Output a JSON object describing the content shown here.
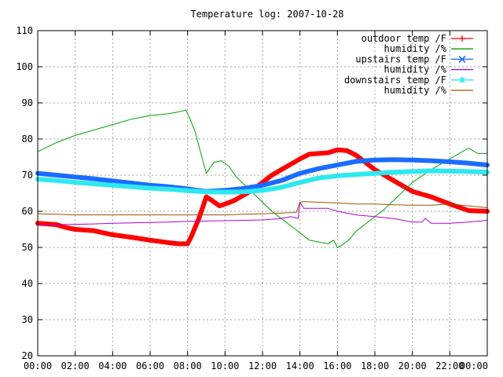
{
  "chart_data": {
    "type": "line",
    "title": "Temperature log: 2007-10-28",
    "xlabel": "",
    "ylabel": "",
    "xlim": [
      0,
      24
    ],
    "ylim": [
      20,
      110
    ],
    "grid": true,
    "legend_position": "top-right",
    "x_ticks": [
      "00:00",
      "02:00",
      "04:00",
      "06:00",
      "08:00",
      "10:00",
      "12:00",
      "14:00",
      "16:00",
      "18:00",
      "20:00",
      "22:00",
      "00:00"
    ],
    "y_ticks": [
      "20",
      "30",
      "40",
      "50",
      "60",
      "70",
      "80",
      "90",
      "100",
      "110"
    ],
    "series": [
      {
        "name": "outdoor temp /F",
        "color": "#ff0000",
        "marker": "plus",
        "width": 6,
        "x": [
          0,
          1,
          1.5,
          2,
          3,
          4,
          5,
          6,
          7,
          7.5,
          8,
          8.2,
          8.6,
          9,
          9.3,
          9.7,
          10,
          10.5,
          11,
          11.5,
          12,
          12.5,
          13,
          13.5,
          14,
          14.5,
          15,
          15.5,
          16,
          16.5,
          17,
          17.5,
          18,
          18.5,
          19,
          19.5,
          20,
          21,
          22,
          23,
          24
        ],
        "y": [
          56.7,
          56.3,
          55.5,
          55,
          54.6,
          53.5,
          52.8,
          52,
          51.3,
          51,
          51,
          53,
          58,
          64,
          63,
          61.5,
          62,
          63,
          64.5,
          66,
          68,
          70,
          71.5,
          73,
          74.5,
          75.8,
          76,
          76.2,
          77,
          76.8,
          75.5,
          73.5,
          71.5,
          70,
          68.5,
          67,
          65.5,
          64,
          62,
          60.2,
          60
        ]
      },
      {
        "name": "humidity /%",
        "color": "#00a000",
        "marker": "none",
        "width": 1,
        "x": [
          0,
          1,
          2,
          3,
          4,
          5,
          6,
          7,
          7.5,
          7.9,
          8.1,
          8.4,
          9,
          9.4,
          9.8,
          10.2,
          10.6,
          11,
          11.5,
          12,
          12.5,
          13,
          13.5,
          14,
          14.5,
          15,
          15.5,
          15.8,
          16,
          16.2,
          16.6,
          17,
          17.5,
          18,
          18.5,
          19,
          19.5,
          20,
          21,
          22,
          23,
          23.5,
          24
        ],
        "y": [
          76.5,
          79,
          81,
          82.5,
          84,
          85.5,
          86.5,
          87,
          87.5,
          88,
          86,
          82,
          70.5,
          73.5,
          74,
          72.5,
          69.5,
          67.5,
          65,
          62.5,
          60,
          58,
          56,
          54,
          52,
          51.5,
          51,
          52,
          50,
          50.5,
          52,
          54.5,
          56.5,
          58.5,
          60.5,
          63,
          65.5,
          68,
          71.5,
          74.5,
          77.5,
          76,
          76
        ]
      },
      {
        "name": "upstairs temp /F",
        "color": "#1a6cff",
        "marker": "cross",
        "width": 6,
        "x": [
          0,
          1,
          2,
          3,
          4,
          5,
          6,
          7,
          8,
          8.5,
          9,
          10,
          11,
          12,
          13,
          14,
          15,
          16,
          17,
          18,
          19,
          20,
          21,
          22,
          23,
          24
        ],
        "y": [
          70.5,
          70,
          69.5,
          69,
          68.4,
          67.8,
          67.2,
          66.8,
          66.2,
          65.8,
          65.5,
          65.8,
          66.3,
          67.2,
          68.5,
          70.5,
          71.8,
          72.8,
          73.8,
          74.2,
          74.3,
          74.2,
          74,
          73.7,
          73.3,
          72.8
        ]
      },
      {
        "name": "humidity /%",
        "color": "#b000d0",
        "marker": "none",
        "width": 1,
        "x": [
          0,
          1,
          2,
          3,
          4,
          5,
          6,
          7,
          8,
          9,
          10,
          11,
          12,
          13,
          13.5,
          13.9,
          14,
          14.2,
          14.5,
          15,
          15.5,
          16,
          17,
          18,
          19,
          20,
          20.5,
          20.7,
          21,
          22,
          23,
          24
        ],
        "y": [
          56.3,
          56.3,
          56.4,
          56.5,
          56.7,
          56.8,
          56.9,
          57,
          57.2,
          57.3,
          57.4,
          57.5,
          57.6,
          58,
          58.5,
          58,
          62.5,
          60.8,
          60.8,
          60.8,
          60.8,
          60,
          59,
          58.5,
          58,
          57,
          57,
          58,
          56.7,
          56.7,
          57,
          57.5
        ]
      },
      {
        "name": "downstairs temp /F",
        "color": "#2ee8f0",
        "marker": "star",
        "width": 6,
        "x": [
          0,
          1,
          2,
          3,
          4,
          5,
          6,
          7,
          8,
          9,
          10,
          11,
          12,
          13,
          14,
          15,
          16,
          17,
          18,
          19,
          20,
          21,
          22,
          23,
          24
        ],
        "y": [
          68.9,
          68.5,
          68,
          67.6,
          67.2,
          66.8,
          66.4,
          66.1,
          65.7,
          65.4,
          65.3,
          65.4,
          65.8,
          66.6,
          68,
          69.2,
          69.8,
          70.2,
          70.5,
          70.8,
          71,
          71.2,
          71.1,
          71,
          70.8
        ]
      },
      {
        "name": "humidity /%",
        "color": "#a05000",
        "marker": "none",
        "width": 1,
        "x": [
          0,
          1,
          2,
          3,
          4,
          5,
          6,
          7,
          8,
          9,
          10,
          11,
          12,
          13,
          13.8,
          14,
          14.2,
          15,
          16,
          17,
          18,
          19,
          20,
          21,
          22,
          23,
          24
        ],
        "y": [
          59.3,
          59.2,
          59,
          59,
          59,
          59,
          59,
          59,
          59,
          59,
          59,
          59.2,
          59.3,
          59.5,
          59.7,
          62.5,
          62.7,
          62.5,
          62.3,
          62,
          62,
          61.8,
          61.7,
          61.7,
          62,
          61.5,
          61
        ]
      }
    ]
  }
}
